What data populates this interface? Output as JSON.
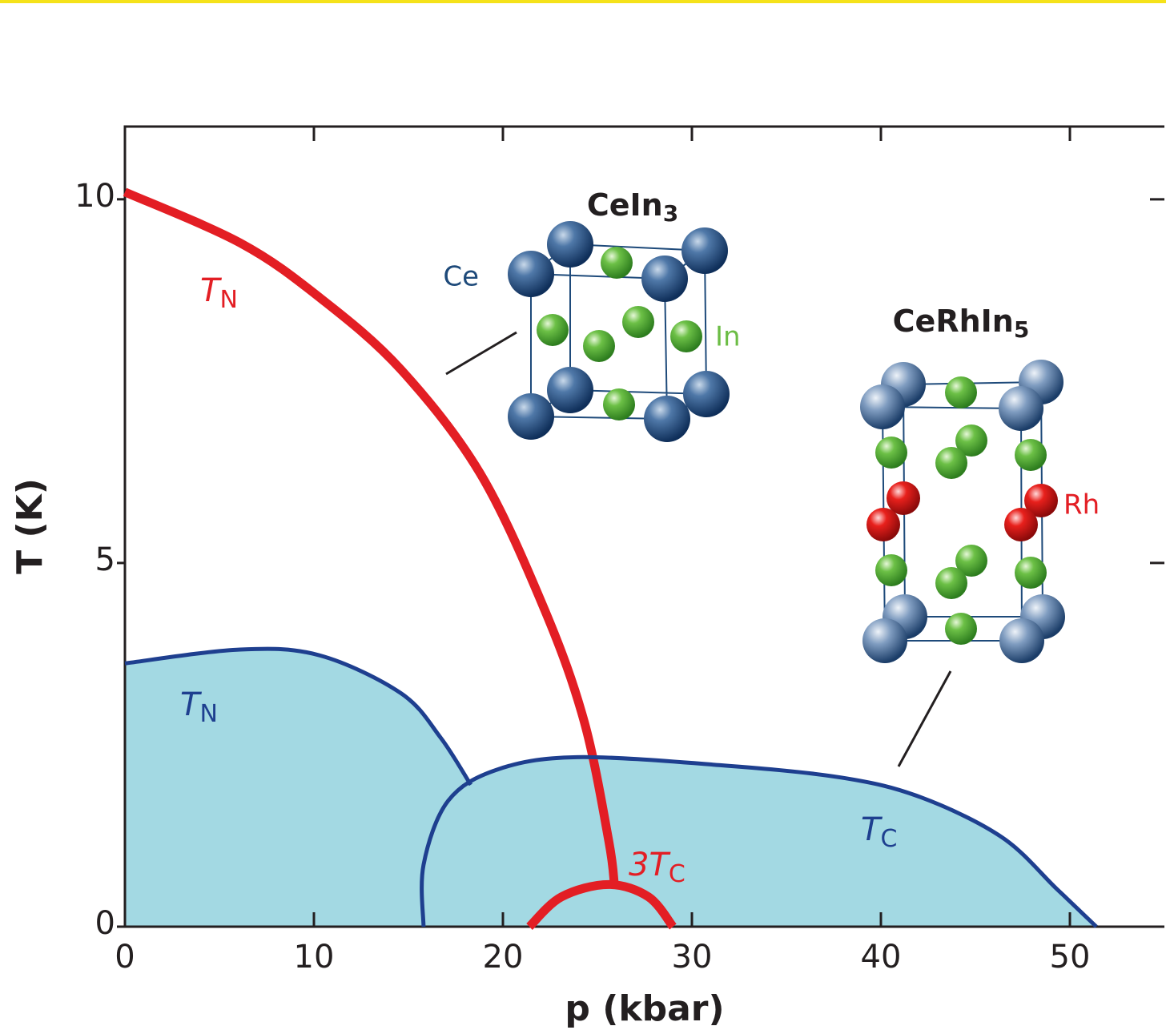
{
  "chart_data": {
    "type": "line",
    "xlabel": "p (kbar)",
    "ylabel": "T (K)",
    "xlim": [
      0,
      55
    ],
    "ylim": [
      0,
      11
    ],
    "xticks": [
      0,
      10,
      20,
      30,
      40,
      50
    ],
    "yticks": [
      0,
      5,
      10
    ],
    "series": [
      {
        "label": {
          "text": "T",
          "sub": "N"
        },
        "color": "#e31e24",
        "x": [
          0,
          6.1,
          10.3,
          14.6,
          18.8,
          22.2,
          24.3,
          25.6,
          25.9
        ],
        "values": [
          10.1,
          9.4,
          8.65,
          7.66,
          6.23,
          4.36,
          2.82,
          1.18,
          0.57
        ]
      },
      {
        "label": {
          "text": "3T",
          "sub": "C"
        },
        "color": "#e31e24",
        "x": [
          21.4,
          23.1,
          25.6,
          27.7,
          29
        ],
        "values": [
          0,
          0.41,
          0.58,
          0.41,
          0
        ]
      },
      {
        "label": {
          "text": "T",
          "sub": "N"
        },
        "color": "#1e3f8f",
        "fill": "#a3d9e3",
        "x": [
          0,
          6.1,
          10.3,
          14.6,
          16.7,
          18.3
        ],
        "values": [
          3.62,
          3.81,
          3.73,
          3.21,
          2.6,
          1.95
        ]
      },
      {
        "label": {
          "text": "T",
          "sub": "C"
        },
        "color": "#1e3f8f",
        "fill": "#a3d9e3",
        "x": [
          15.8,
          15.8,
          17.1,
          19.7,
          23.9,
          31.5,
          37.9,
          42.1,
          46.4,
          49.3,
          51.4
        ],
        "values": [
          0,
          0.85,
          1.73,
          2.16,
          2.33,
          2.22,
          2.05,
          1.78,
          1.23,
          0.52,
          0
        ]
      }
    ],
    "structures": [
      {
        "formula": {
          "text": "CeIn",
          "sub": "3"
        },
        "atoms": [
          "Ce",
          "In"
        ]
      },
      {
        "formula": {
          "text": "CeRhIn",
          "sub": "5"
        },
        "atoms": [
          "Rh"
        ]
      }
    ]
  }
}
